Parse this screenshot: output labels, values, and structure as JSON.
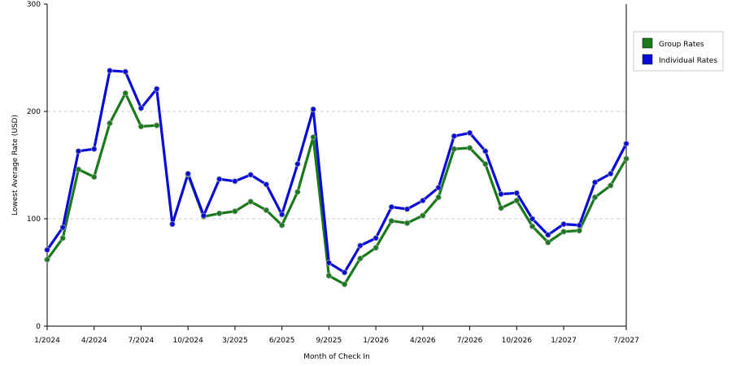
{
  "chart_data": {
    "type": "line",
    "xlabel": "Month of Check In",
    "ylabel": "Lowest Average Rate (USD)",
    "ylim": [
      0,
      300
    ],
    "yticks": [
      "0",
      "100",
      "200",
      "300"
    ],
    "grid": "horizontal dashed",
    "legend_position": "right",
    "x_tick_labels": [
      {
        "index": 0,
        "label": "1/2024"
      },
      {
        "index": 3,
        "label": "4/2024"
      },
      {
        "index": 6,
        "label": "7/2024"
      },
      {
        "index": 9,
        "label": "10/2024"
      },
      {
        "index": 12,
        "label": "3/2025"
      },
      {
        "index": 15,
        "label": "6/2025"
      },
      {
        "index": 18,
        "label": "9/2025"
      },
      {
        "index": 21,
        "label": "1/2026"
      },
      {
        "index": 24,
        "label": "4/2026"
      },
      {
        "index": 27,
        "label": "7/2026"
      },
      {
        "index": 30,
        "label": "10/2026"
      },
      {
        "index": 33,
        "label": "1/2027"
      },
      {
        "index": 37,
        "label": "7/2027"
      }
    ],
    "point_count": 38,
    "series": [
      {
        "name": "Group Rates",
        "color": "#1a7a1a",
        "values": [
          62,
          82,
          146,
          139,
          189,
          217,
          186,
          187,
          null,
          141,
          102,
          105,
          107,
          116,
          108,
          94,
          125,
          176,
          47,
          39,
          63,
          73,
          98,
          96,
          103,
          120,
          165,
          166,
          151,
          110,
          117,
          93,
          78,
          88,
          89,
          120,
          131,
          156
        ]
      },
      {
        "name": "Individual Rates",
        "color": "#0a0ad8",
        "values": [
          71,
          92,
          163,
          165,
          238,
          237,
          203,
          221,
          95,
          142,
          103,
          137,
          135,
          141,
          132,
          104,
          151,
          202,
          59,
          50,
          75,
          82,
          111,
          109,
          117,
          129,
          177,
          180,
          163,
          123,
          124,
          100,
          85,
          95,
          94,
          134,
          142,
          170
        ]
      }
    ]
  }
}
